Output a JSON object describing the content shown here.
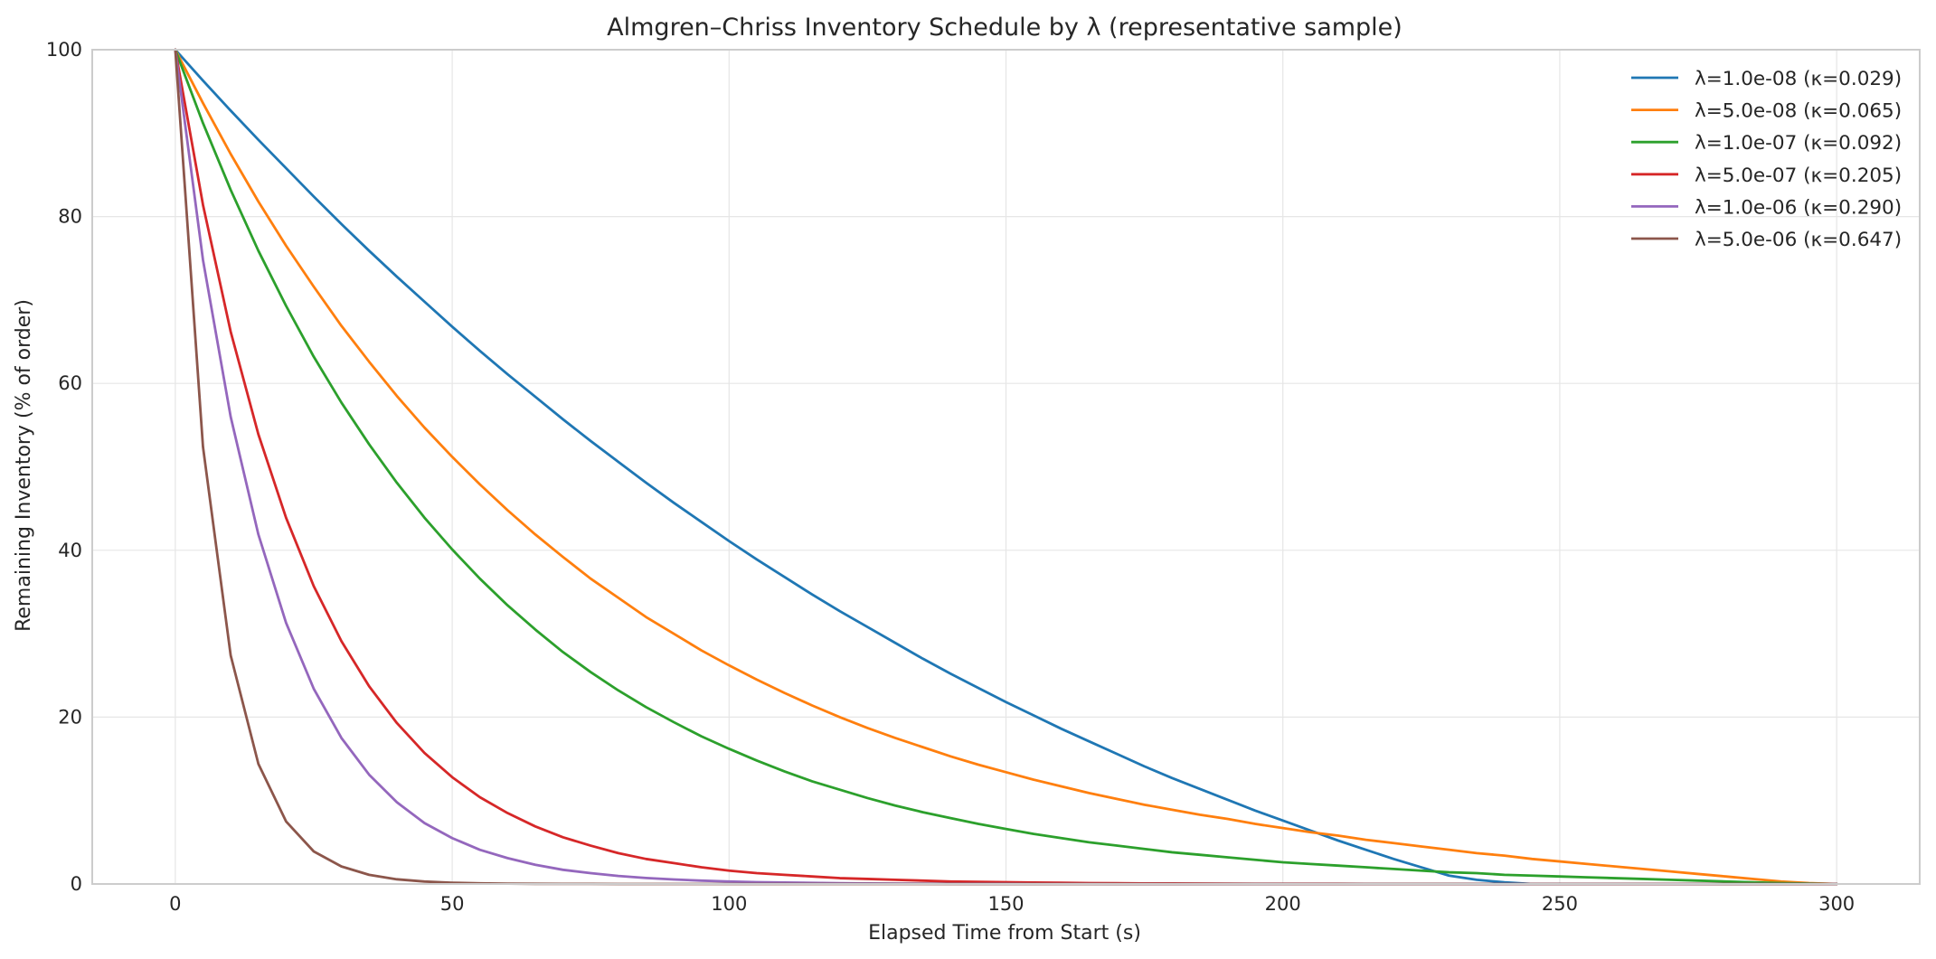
{
  "chart_data": {
    "type": "line",
    "title": "Almgren–Chriss Inventory Schedule by λ (representative sample)",
    "xlabel": "Elapsed Time from Start (s)",
    "ylabel": "Remaining Inventory (% of order)",
    "xlim": [
      -15,
      315
    ],
    "ylim": [
      0,
      100
    ],
    "xticks": [
      0,
      50,
      100,
      150,
      200,
      250,
      300
    ],
    "yticks": [
      0,
      20,
      40,
      60,
      80,
      100
    ],
    "grid": true,
    "legend_position": "top-right",
    "x": [
      0,
      5,
      10,
      15,
      20,
      25,
      30,
      35,
      40,
      45,
      50,
      55,
      60,
      65,
      70,
      75,
      80,
      85,
      90,
      95,
      100,
      105,
      110,
      115,
      120,
      125,
      130,
      135,
      140,
      145,
      150,
      155,
      160,
      165,
      170,
      175,
      180,
      185,
      190,
      195,
      200,
      205,
      210,
      215,
      220,
      225,
      230,
      235,
      240,
      245,
      250,
      255,
      260,
      265,
      270,
      275,
      280,
      285,
      290,
      295,
      300
    ],
    "series": [
      {
        "name": "λ=1.0e-08 (κ=0.029)",
        "color": "#1f77b4",
        "values": [
          100.0,
          96.3,
          92.7,
          89.2,
          85.8,
          82.4,
          79.1,
          75.9,
          72.8,
          69.8,
          66.8,
          63.9,
          61.1,
          58.4,
          55.7,
          53.1,
          50.6,
          48.1,
          45.7,
          43.4,
          41.1,
          38.9,
          36.8,
          34.7,
          32.7,
          30.8,
          28.9,
          27.0,
          25.2,
          23.5,
          21.8,
          20.2,
          18.6,
          17.1,
          15.6,
          14.1,
          12.7,
          11.4,
          10.1,
          8.8,
          7.6,
          6.4,
          5.2,
          4.1,
          3.0,
          2.0,
          1.0,
          0.5,
          0.2,
          0.0,
          0.0,
          0.0,
          0.0,
          0.0,
          0.0,
          0.0,
          0.0,
          0.0,
          0.0,
          0.0,
          0.0
        ]
      },
      {
        "name": "λ=5.0e-08 (κ=0.065)",
        "color": "#ff7f0e",
        "values": [
          100.0,
          93.6,
          87.5,
          81.8,
          76.5,
          71.6,
          66.9,
          62.6,
          58.5,
          54.7,
          51.2,
          47.9,
          44.8,
          41.9,
          39.2,
          36.6,
          34.3,
          32.0,
          30.0,
          28.0,
          26.2,
          24.5,
          22.9,
          21.4,
          20.0,
          18.7,
          17.5,
          16.4,
          15.3,
          14.3,
          13.4,
          12.5,
          11.7,
          10.9,
          10.2,
          9.5,
          8.9,
          8.3,
          7.8,
          7.2,
          6.7,
          6.2,
          5.8,
          5.3,
          4.9,
          4.5,
          4.1,
          3.7,
          3.4,
          3.0,
          2.7,
          2.4,
          2.1,
          1.8,
          1.5,
          1.2,
          0.9,
          0.6,
          0.3,
          0.1,
          0.0
        ]
      },
      {
        "name": "λ=1.0e-07 (κ=0.092)",
        "color": "#2ca02c",
        "values": [
          100.0,
          91.2,
          83.2,
          75.9,
          69.3,
          63.2,
          57.7,
          52.7,
          48.1,
          43.9,
          40.1,
          36.6,
          33.4,
          30.5,
          27.8,
          25.4,
          23.2,
          21.2,
          19.4,
          17.7,
          16.2,
          14.8,
          13.5,
          12.3,
          11.3,
          10.3,
          9.4,
          8.6,
          7.9,
          7.2,
          6.6,
          6.0,
          5.5,
          5.0,
          4.6,
          4.2,
          3.8,
          3.5,
          3.2,
          2.9,
          2.6,
          2.4,
          2.2,
          2.0,
          1.8,
          1.6,
          1.4,
          1.3,
          1.1,
          1.0,
          0.9,
          0.8,
          0.7,
          0.6,
          0.5,
          0.4,
          0.3,
          0.2,
          0.1,
          0.05,
          0.0
        ]
      },
      {
        "name": "λ=5.0e-07 (κ=0.205)",
        "color": "#d62728",
        "values": [
          100.0,
          81.4,
          66.2,
          53.9,
          43.9,
          35.7,
          29.1,
          23.7,
          19.3,
          15.7,
          12.8,
          10.4,
          8.5,
          6.9,
          5.6,
          4.6,
          3.7,
          3.0,
          2.5,
          2.0,
          1.6,
          1.3,
          1.1,
          0.9,
          0.7,
          0.6,
          0.5,
          0.4,
          0.3,
          0.26,
          0.21,
          0.17,
          0.14,
          0.11,
          0.09,
          0.07,
          0.06,
          0.05,
          0.04,
          0.03,
          0.03,
          0.02,
          0.02,
          0.01,
          0.01,
          0.01,
          0.01,
          0.0,
          0.0,
          0.0,
          0.0,
          0.0,
          0.0,
          0.0,
          0.0,
          0.0,
          0.0,
          0.0,
          0.0,
          0.0,
          0.0
        ]
      },
      {
        "name": "λ=1.0e-06 (κ=0.290)",
        "color": "#9467bd",
        "values": [
          100.0,
          74.8,
          56.0,
          41.9,
          31.3,
          23.4,
          17.5,
          13.1,
          9.8,
          7.3,
          5.5,
          4.1,
          3.1,
          2.3,
          1.7,
          1.3,
          0.96,
          0.72,
          0.54,
          0.4,
          0.3,
          0.22,
          0.17,
          0.13,
          0.09,
          0.07,
          0.05,
          0.04,
          0.03,
          0.02,
          0.02,
          0.01,
          0.01,
          0.01,
          0.0,
          0.0,
          0.0,
          0.0,
          0.0,
          0.0,
          0.0,
          0.0,
          0.0,
          0.0,
          0.0,
          0.0,
          0.0,
          0.0,
          0.0,
          0.0,
          0.0,
          0.0,
          0.0,
          0.0,
          0.0,
          0.0,
          0.0,
          0.0,
          0.0,
          0.0,
          0.0
        ]
      },
      {
        "name": "λ=5.0e-06 (κ=0.647)",
        "color": "#8c564b",
        "values": [
          100.0,
          52.4,
          27.4,
          14.4,
          7.5,
          3.9,
          2.1,
          1.1,
          0.56,
          0.29,
          0.15,
          0.08,
          0.04,
          0.02,
          0.01,
          0.01,
          0.0,
          0.0,
          0.0,
          0.0,
          0.0,
          0.0,
          0.0,
          0.0,
          0.0,
          0.0,
          0.0,
          0.0,
          0.0,
          0.0,
          0.0,
          0.0,
          0.0,
          0.0,
          0.0,
          0.0,
          0.0,
          0.0,
          0.0,
          0.0,
          0.0,
          0.0,
          0.0,
          0.0,
          0.0,
          0.0,
          0.0,
          0.0,
          0.0,
          0.0,
          0.0,
          0.0,
          0.0,
          0.0,
          0.0,
          0.0,
          0.0,
          0.0,
          0.0,
          0.0,
          0.0
        ]
      }
    ]
  }
}
